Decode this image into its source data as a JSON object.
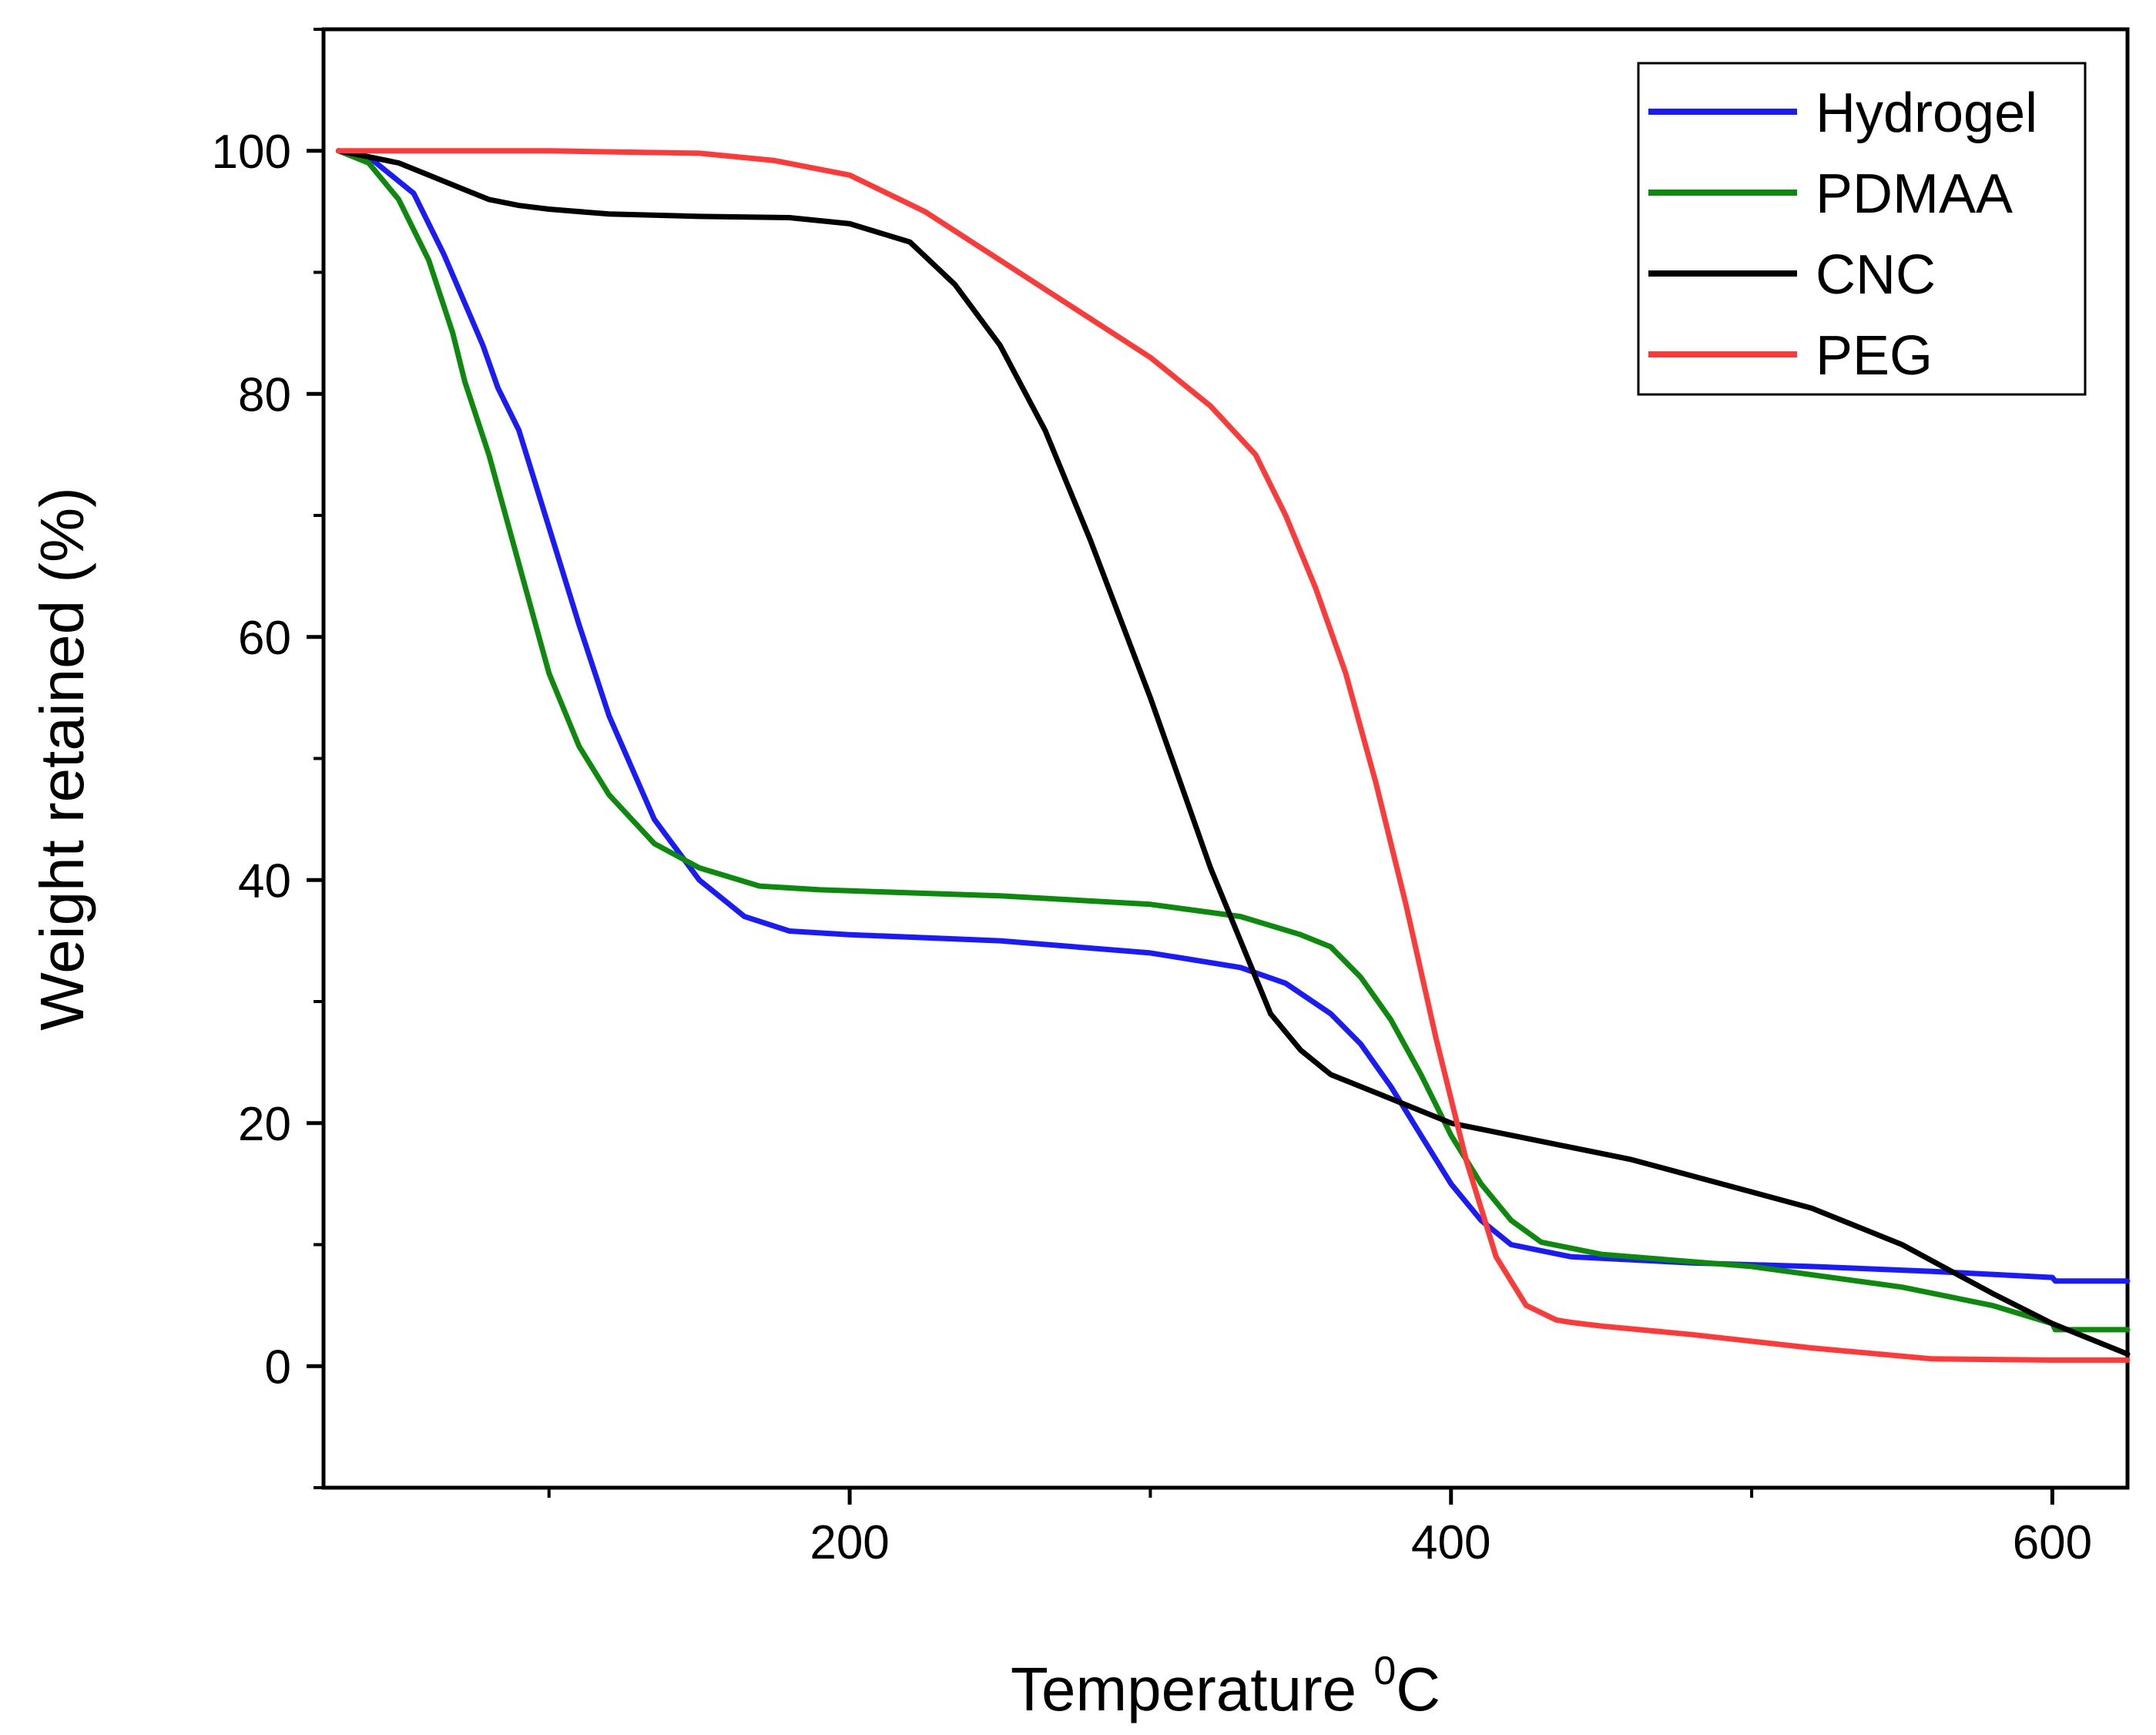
{
  "chart_data": {
    "type": "line",
    "title": "",
    "xlabel": "Temperature ",
    "xlabel_sup": "0",
    "xlabel_suffix": "C",
    "ylabel": "Weight retained (%)",
    "xlim": [
      25,
      625
    ],
    "ylim": [
      -10,
      110
    ],
    "xticks_major": [
      200,
      400,
      600
    ],
    "xticks_minor": [
      100,
      300,
      500
    ],
    "yticks_major": [
      0,
      20,
      40,
      60,
      80,
      100
    ],
    "yticks_minor": [
      -10,
      10,
      30,
      50,
      70,
      90,
      110
    ],
    "legend_position": "top-right",
    "series": [
      {
        "name": "Hydrogel",
        "color": "#1a1aff",
        "x": [
          30,
          40,
          55,
          65,
          78,
          83,
          90,
          100,
          110,
          120,
          135,
          150,
          165,
          180,
          200,
          250,
          300,
          330,
          345,
          360,
          370,
          380,
          390,
          400,
          410,
          420,
          440,
          480,
          520,
          560,
          600,
          601,
          625
        ],
        "y": [
          100,
          99.5,
          96.5,
          91.5,
          84,
          80.5,
          77,
          69,
          61,
          53.5,
          45,
          40,
          37,
          35.8,
          35.5,
          35,
          34,
          32.8,
          31.5,
          29,
          26.5,
          23,
          19,
          15,
          12,
          10,
          9,
          8.5,
          8.2,
          7.8,
          7.3,
          7,
          7
        ]
      },
      {
        "name": "PDMAA",
        "color": "#0c8a0c",
        "x": [
          30,
          40,
          50,
          60,
          68,
          72,
          80,
          90,
          100,
          110,
          120,
          135,
          150,
          170,
          190,
          250,
          300,
          330,
          350,
          360,
          370,
          380,
          390,
          400,
          410,
          420,
          430,
          450,
          500,
          550,
          580,
          600,
          601,
          625
        ],
        "y": [
          100,
          99,
          96,
          91,
          85,
          81,
          75,
          66,
          57,
          51,
          47,
          43,
          41,
          39.5,
          39.2,
          38.7,
          38,
          37,
          35.5,
          34.5,
          32,
          28.5,
          24,
          19,
          15,
          12,
          10.2,
          9.2,
          8.2,
          6.5,
          5,
          3.5,
          3,
          3
        ]
      },
      {
        "name": "CNC",
        "color": "#000000",
        "x": [
          30,
          40,
          50,
          60,
          70,
          80,
          90,
          100,
          120,
          150,
          180,
          200,
          220,
          235,
          250,
          265,
          280,
          300,
          310,
          320,
          330,
          340,
          350,
          360,
          375,
          400,
          430,
          460,
          490,
          520,
          550,
          580,
          600,
          625
        ],
        "y": [
          100,
          99.5,
          99,
          98,
          97,
          96,
          95.5,
          95.2,
          94.8,
          94.6,
          94.5,
          94,
          92.5,
          89,
          84,
          77,
          68,
          55,
          48,
          41,
          35,
          29,
          26,
          24,
          22.5,
          20,
          18.5,
          17,
          15,
          13,
          10,
          6,
          3.5,
          1
        ]
      },
      {
        "name": "PEG",
        "color": "#ff3838",
        "x": [
          30,
          50,
          100,
          150,
          175,
          200,
          225,
          250,
          275,
          300,
          320,
          335,
          345,
          355,
          365,
          375,
          385,
          395,
          405,
          415,
          425,
          435,
          440,
          450,
          480,
          520,
          560,
          600,
          625
        ],
        "y": [
          100,
          100,
          100,
          99.8,
          99.2,
          98,
          95,
          91,
          87,
          83,
          79,
          75,
          70,
          64,
          57,
          48,
          38,
          27,
          17,
          9,
          5,
          3.8,
          3.6,
          3.3,
          2.6,
          1.5,
          0.6,
          0.5,
          0.5
        ]
      }
    ]
  }
}
